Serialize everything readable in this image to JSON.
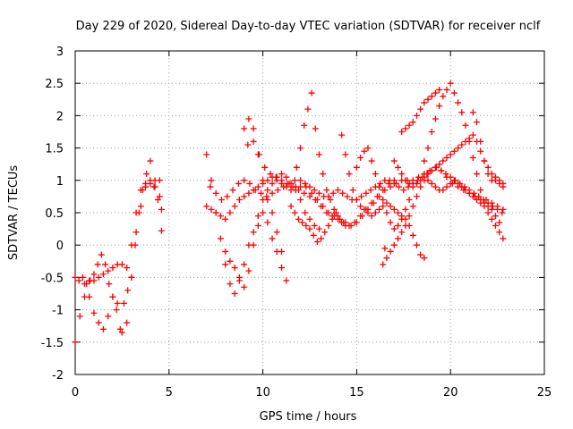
{
  "chart_data": {
    "type": "scatter",
    "title": "Day 229 of 2020, Sidereal Day-to-day VTEC variation (SDTVAR) for receiver nclf",
    "xlabel": "GPS time / hours",
    "ylabel": "SDTVAR / TECUs",
    "xlim": [
      0,
      25
    ],
    "ylim": [
      -2,
      3
    ],
    "xticks": [
      0,
      5,
      10,
      15,
      20,
      25
    ],
    "yticks": [
      -2,
      -1.5,
      -1,
      -0.5,
      0,
      0.5,
      1,
      1.5,
      2,
      2.5,
      3
    ],
    "xtick_labels": [
      "0",
      "5",
      "10",
      "15",
      "20",
      "25"
    ],
    "ytick_labels": [
      "-2",
      "-1.5",
      "-1",
      "-0.5",
      "0",
      "0.5",
      "1",
      "1.5",
      "2",
      "2.5",
      "3"
    ],
    "grid": true,
    "marker": "+",
    "color": "#ff0000",
    "series": [
      {
        "name": "s1",
        "x": [
          0.0,
          0.25,
          0.5,
          0.75,
          1.0,
          1.25,
          1.5,
          1.75,
          2.0,
          2.25,
          2.5,
          2.75,
          3.0,
          3.25,
          3.5,
          3.75,
          4.0,
          4.25,
          4.5
        ],
        "y": [
          -1.5,
          -1.1,
          -0.8,
          -0.55,
          -0.55,
          -0.5,
          -0.45,
          -0.4,
          -0.35,
          -0.3,
          -0.3,
          -0.35,
          0.0,
          0.5,
          0.85,
          0.95,
          1.0,
          1.0,
          1.0
        ]
      },
      {
        "name": "s2",
        "x": [
          0.0,
          0.2,
          0.4,
          0.6,
          0.8,
          1.0,
          1.2,
          1.4,
          1.6,
          1.8,
          2.0,
          2.2,
          2.4,
          2.6,
          2.8,
          3.0,
          3.2,
          3.4,
          3.6,
          3.8,
          4.0,
          4.2,
          4.4,
          4.6
        ],
        "y": [
          -0.5,
          -0.55,
          -0.5,
          -0.6,
          -0.55,
          -0.45,
          -0.3,
          -0.15,
          -0.3,
          -0.6,
          -0.8,
          -1.0,
          -1.3,
          -0.9,
          -0.7,
          -0.5,
          0.0,
          0.5,
          0.85,
          1.1,
          1.3,
          0.9,
          0.7,
          0.55
        ]
      },
      {
        "name": "s3",
        "x": [
          0.5,
          0.75,
          1.0,
          1.25,
          1.5,
          1.75,
          2.0,
          2.25,
          2.5,
          2.75,
          3.0,
          3.25,
          3.5,
          3.75,
          4.0,
          4.25,
          4.5
        ],
        "y": [
          -0.6,
          -0.8,
          -1.05,
          -1.2,
          -1.3,
          -1.1,
          -0.8,
          -0.9,
          -1.35,
          -1.2,
          -0.5,
          0.2,
          0.6,
          0.9,
          0.95,
          0.9,
          0.75
        ]
      },
      {
        "name": "s4",
        "x": [
          4.6
        ],
        "y": [
          0.22
        ]
      },
      {
        "name": "s5",
        "x": [
          7.0,
          7.25,
          7.5,
          7.75,
          8.0,
          8.25,
          8.5,
          8.75,
          9.0,
          9.25,
          9.5,
          9.75,
          10.0,
          10.25,
          10.5,
          10.75,
          11.0,
          11.25,
          11.5,
          11.75,
          12.0,
          12.25,
          12.5,
          12.75,
          13.0,
          13.25,
          13.5,
          13.75,
          14.0,
          14.25,
          14.5,
          14.75,
          15.0,
          15.25,
          15.5,
          15.75,
          16.0,
          16.25,
          16.5,
          16.75,
          17.0,
          17.25,
          17.5,
          17.75,
          18.0,
          18.25,
          18.5,
          18.75,
          19.0,
          19.25,
          19.5,
          19.75,
          20.0,
          20.25,
          20.5,
          20.75,
          21.0,
          21.25,
          21.5,
          21.75,
          22.0,
          22.25,
          22.5,
          22.75
        ],
        "y": [
          0.6,
          0.55,
          0.5,
          0.45,
          0.4,
          0.5,
          0.6,
          0.7,
          0.75,
          0.8,
          0.85,
          0.9,
          0.95,
          1.0,
          1.05,
          1.0,
          0.95,
          0.9,
          0.85,
          0.85,
          0.9,
          0.95,
          0.9,
          0.85,
          0.8,
          0.75,
          0.75,
          0.8,
          0.85,
          0.8,
          0.75,
          0.7,
          0.7,
          0.75,
          0.8,
          0.85,
          0.9,
          0.95,
          1.0,
          1.0,
          0.95,
          0.9,
          0.85,
          0.9,
          0.95,
          1.0,
          1.05,
          1.1,
          1.15,
          1.2,
          1.15,
          1.1,
          1.05,
          1.0,
          0.95,
          0.9,
          0.85,
          0.8,
          0.75,
          0.7,
          0.65,
          0.6,
          0.55,
          0.5
        ]
      },
      {
        "name": "s6",
        "x": [
          7.0,
          7.25,
          7.5,
          7.75,
          8.0,
          8.25,
          8.5,
          8.75,
          9.0,
          9.25,
          9.5,
          9.75,
          10.0,
          10.25,
          10.5,
          10.75,
          11.0,
          11.25
        ],
        "y": [
          1.4,
          1.0,
          0.5,
          0.1,
          -0.1,
          -0.25,
          -0.35,
          -0.5,
          -0.65,
          -0.4,
          0.0,
          0.3,
          0.5,
          0.35,
          0.1,
          -0.1,
          -0.35,
          -0.55
        ]
      },
      {
        "name": "s7",
        "x": [
          8.0,
          8.25,
          8.5,
          8.75,
          9.0,
          9.25,
          9.5,
          9.75,
          10.0,
          10.25,
          10.5,
          10.75,
          11.0,
          11.25,
          11.5,
          11.75,
          12.0,
          12.25,
          12.5,
          12.75,
          13.0
        ],
        "y": [
          -0.3,
          -0.6,
          -0.75,
          -0.55,
          -0.3,
          0.0,
          0.2,
          0.45,
          0.7,
          0.85,
          0.95,
          1.05,
          1.1,
          1.05,
          0.95,
          0.9,
          0.7,
          0.5,
          0.4,
          0.3,
          0.25
        ]
      },
      {
        "name": "s8",
        "x": [
          7.2,
          7.5,
          7.8,
          8.1,
          8.4,
          8.7,
          9.0,
          9.3,
          9.6,
          9.9,
          10.2,
          10.5,
          10.8,
          11.1,
          11.4,
          11.7,
          12.0,
          12.3,
          12.6,
          12.9,
          13.2,
          13.5,
          13.8,
          14.1,
          14.4,
          14.7,
          15.0,
          15.3,
          15.6,
          15.9,
          16.2,
          16.5,
          16.8,
          17.1,
          17.4,
          17.7,
          18.0,
          18.3,
          18.6,
          18.9,
          19.2,
          19.5,
          19.8,
          20.1,
          20.4,
          20.7,
          21.0,
          21.3,
          21.6,
          21.9,
          22.2,
          22.5,
          22.8
        ],
        "y": [
          0.9,
          0.8,
          0.7,
          0.75,
          0.85,
          0.95,
          1.0,
          0.95,
          0.85,
          0.8,
          0.75,
          0.8,
          0.85,
          0.9,
          0.95,
          1.0,
          1.0,
          0.9,
          0.8,
          0.7,
          0.6,
          0.5,
          0.45,
          0.4,
          0.35,
          0.3,
          0.35,
          0.45,
          0.55,
          0.65,
          0.75,
          0.85,
          0.9,
          0.95,
          1.0,
          1.0,
          1.0,
          1.05,
          1.1,
          1.15,
          1.2,
          1.15,
          1.05,
          0.95,
          0.9,
          0.85,
          0.8,
          0.75,
          0.7,
          0.7,
          0.65,
          0.6,
          0.55
        ]
      },
      {
        "name": "s9",
        "x": [
          9.2,
          9.5,
          9.8,
          10.1,
          10.4,
          10.7,
          11.0,
          11.3,
          11.6,
          11.9,
          12.2,
          12.5,
          12.8,
          13.1,
          13.4,
          13.7,
          14.0,
          14.3,
          14.6,
          14.9,
          15.2,
          15.5,
          15.8,
          16.1,
          16.4,
          16.7,
          17.0
        ],
        "y": [
          1.55,
          1.6,
          1.4,
          1.2,
          1.1,
          1.05,
          1.0,
          0.95,
          0.9,
          0.85,
          0.8,
          0.75,
          0.7,
          0.6,
          0.5,
          0.45,
          0.4,
          0.35,
          0.3,
          0.35,
          0.45,
          0.55,
          0.65,
          0.75,
          0.85,
          0.95,
          1.0
        ]
      },
      {
        "name": "s10",
        "x": [
          9.0,
          9.25,
          9.5,
          9.75,
          10.0,
          10.25,
          10.5,
          10.75,
          11.0
        ],
        "y": [
          1.8,
          1.95,
          1.8,
          1.4,
          1.0,
          0.7,
          0.5,
          0.2,
          -0.1
        ]
      },
      {
        "name": "s11",
        "x": [
          11.8,
          12.0,
          12.2,
          12.4,
          12.6,
          12.8,
          13.0,
          13.2,
          13.4,
          13.6,
          13.8,
          14.0,
          14.2,
          14.4
        ],
        "y": [
          1.2,
          1.5,
          1.85,
          2.1,
          2.35,
          1.8,
          1.4,
          1.1,
          0.85,
          0.7,
          0.55,
          0.45,
          0.35,
          0.3
        ]
      },
      {
        "name": "s12",
        "x": [
          11.5,
          11.7,
          11.9,
          12.1,
          12.3,
          12.5,
          12.7,
          12.9,
          13.1,
          13.3,
          13.5,
          13.7,
          13.9
        ],
        "y": [
          0.6,
          0.5,
          0.4,
          0.35,
          0.3,
          0.25,
          0.15,
          0.05,
          0.1,
          0.2,
          0.3,
          0.4,
          0.5
        ]
      },
      {
        "name": "s13",
        "x": [
          14.2,
          14.4,
          14.6,
          14.8,
          15.0,
          15.2,
          15.4,
          15.6,
          15.8,
          16.0,
          16.2,
          16.4,
          16.6,
          16.8,
          17.0,
          17.2,
          17.4,
          17.6,
          17.8,
          18.0,
          18.2,
          18.4,
          18.6
        ],
        "y": [
          1.7,
          1.4,
          1.1,
          0.85,
          0.7,
          0.6,
          0.55,
          0.5,
          0.45,
          0.5,
          0.55,
          0.6,
          0.65,
          0.6,
          0.55,
          0.5,
          0.45,
          0.4,
          0.3,
          0.15,
          0.0,
          -0.15,
          -0.2
        ]
      },
      {
        "name": "s14",
        "x": [
          15.0,
          15.2,
          15.4,
          15.6,
          15.8,
          16.0,
          16.2,
          16.4,
          16.6,
          16.8,
          17.0,
          17.2,
          17.4,
          17.6,
          17.8
        ],
        "y": [
          1.2,
          1.35,
          1.45,
          1.5,
          1.3,
          1.1,
          0.9,
          0.7,
          0.5,
          0.35,
          0.25,
          0.3,
          0.4,
          0.55,
          0.7
        ]
      },
      {
        "name": "s15",
        "x": [
          16.4,
          16.6,
          16.8,
          17.0,
          17.2,
          17.4,
          17.6,
          17.8,
          18.0,
          18.2,
          18.4,
          18.6,
          18.8,
          19.0,
          19.2,
          19.4,
          19.6,
          19.8,
          20.0,
          20.2,
          20.4,
          20.6,
          20.8,
          21.0,
          21.2,
          21.4,
          21.6,
          21.8,
          22.0,
          22.2,
          22.4,
          22.6,
          22.8
        ],
        "y": [
          -0.3,
          -0.2,
          -0.1,
          0.0,
          0.1,
          0.2,
          0.3,
          0.45,
          0.6,
          0.75,
          0.9,
          1.0,
          1.1,
          1.15,
          1.2,
          1.25,
          1.3,
          1.35,
          1.4,
          1.45,
          1.5,
          1.55,
          1.6,
          1.65,
          1.7,
          1.6,
          1.45,
          1.3,
          1.2,
          1.1,
          1.05,
          1.0,
          0.95
        ]
      },
      {
        "name": "s16",
        "x": [
          16.5
        ],
        "y": [
          -0.05
        ]
      },
      {
        "name": "s17",
        "x": [
          17.0,
          17.2,
          17.4,
          17.6,
          17.8,
          18.0,
          18.2,
          18.4,
          18.6,
          18.8,
          19.0,
          19.2,
          19.4,
          19.6,
          19.8,
          20.0,
          20.2,
          20.4,
          20.6,
          20.8,
          21.0,
          21.2,
          21.4,
          21.6,
          21.8,
          22.0,
          22.2,
          22.4,
          22.6
        ],
        "y": [
          1.3,
          1.2,
          1.1,
          1.0,
          0.95,
          0.9,
          0.95,
          1.0,
          1.05,
          1.0,
          0.95,
          0.9,
          0.85,
          0.85,
          0.9,
          0.95,
          1.0,
          0.95,
          0.9,
          0.85,
          0.8,
          0.75,
          0.7,
          0.65,
          0.6,
          0.6,
          0.55,
          0.45,
          0.35
        ]
      },
      {
        "name": "s18",
        "x": [
          17.4,
          17.6,
          17.8,
          18.0,
          18.2,
          18.4,
          18.6,
          18.8,
          19.0,
          19.2,
          19.4
        ],
        "y": [
          1.75,
          1.8,
          1.85,
          1.9,
          2.0,
          2.1,
          2.2,
          2.25,
          2.3,
          2.35,
          2.4
        ]
      },
      {
        "name": "s19",
        "x": [
          18.6,
          18.8,
          19.0,
          19.2,
          19.4,
          19.6,
          19.8,
          20.0,
          20.2,
          20.4,
          20.6,
          20.8,
          21.0,
          21.2,
          21.4,
          21.6,
          21.8,
          22.0,
          22.2,
          22.4,
          22.6,
          22.8
        ],
        "y": [
          1.3,
          1.5,
          1.75,
          1.95,
          2.15,
          2.3,
          2.4,
          2.5,
          2.35,
          2.2,
          2.05,
          1.85,
          1.6,
          1.35,
          1.1,
          0.85,
          0.65,
          0.5,
          0.4,
          0.3,
          0.2,
          0.1
        ]
      },
      {
        "name": "s20",
        "x": [
          21.2,
          21.4,
          21.6,
          21.8,
          22.0,
          22.2,
          22.4,
          22.6,
          22.8
        ],
        "y": [
          2.05,
          1.9,
          1.6,
          1.3,
          1.1,
          1.0,
          1.0,
          0.95,
          0.9
        ]
      }
    ]
  }
}
